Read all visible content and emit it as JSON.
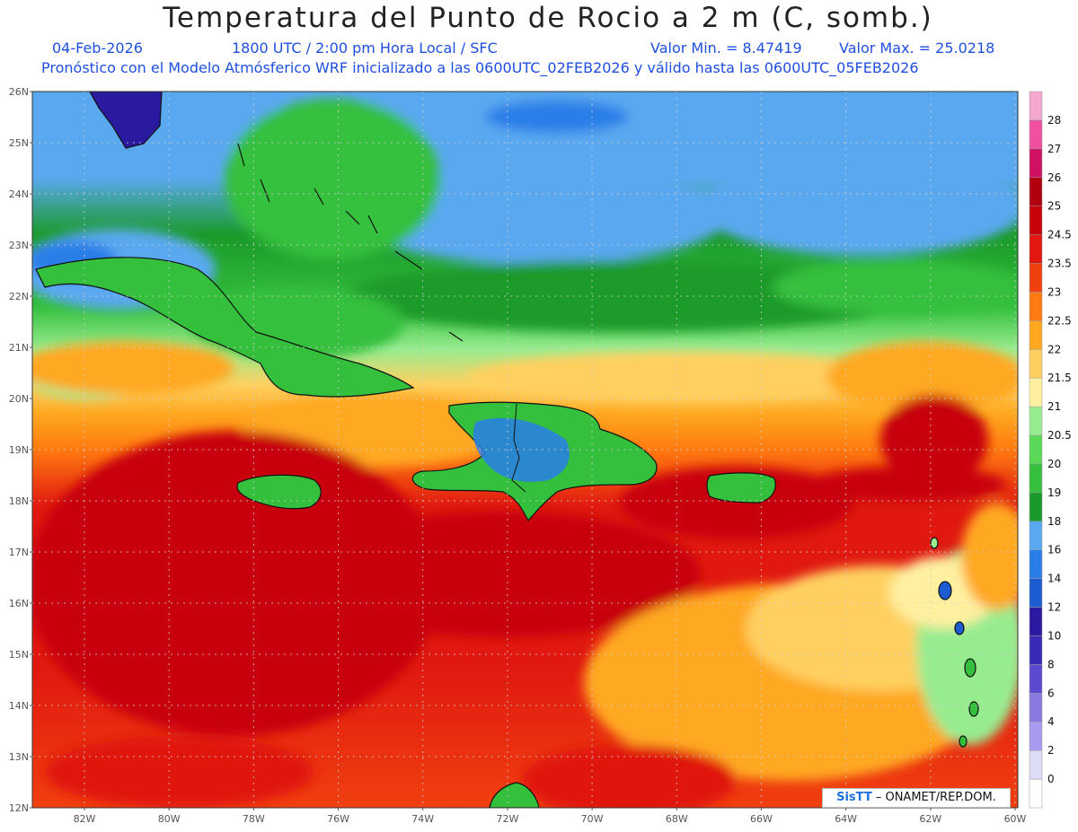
{
  "header": {
    "title": "Temperatura del Punto de Rocio a 2 m (C, somb.)",
    "date": "04-Feb-2026",
    "time": "1800 UTC / 2:00 pm Hora Local / SFC",
    "valmin": "Valor Min. = 8.47419",
    "valmax": "Valor Max. = 25.0218",
    "model": "Pronóstico con el Modelo Atmósferico WRF inicializado a las 0600UTC_02FEB2026 y válido hasta las  0600UTC_05FEB2026"
  },
  "axes": {
    "lat_labels": [
      "26N",
      "25N",
      "24N",
      "23N",
      "22N",
      "21N",
      "20N",
      "19N",
      "18N",
      "17N",
      "16N",
      "15N",
      "14N",
      "13N",
      "12N"
    ],
    "lon_labels": [
      "82W",
      "80W",
      "78W",
      "76W",
      "74W",
      "72W",
      "70W",
      "68W",
      "66W",
      "64W",
      "62W",
      "60W"
    ]
  },
  "colorbar": {
    "levels": [
      "0",
      "2",
      "4",
      "6",
      "8",
      "10",
      "12",
      "14",
      "16",
      "18",
      "19",
      "20",
      "20.5",
      "21",
      "21.5",
      "22",
      "22.5",
      "23",
      "23.5",
      "24.5",
      "25",
      "26",
      "27",
      "28"
    ],
    "colors": [
      "#ffffff",
      "#dcdcf6",
      "#a89cf0",
      "#8a7ae0",
      "#5a4ad0",
      "#3a2ab8",
      "#2a1aa0",
      "#1c5cd0",
      "#2a7ee8",
      "#5aa8f0",
      "#1a9a2a",
      "#34c03c",
      "#5ad858",
      "#98ec90",
      "#fff0a0",
      "#ffd060",
      "#ffa820",
      "#ff7a10",
      "#f04010",
      "#e01810",
      "#c80008",
      "#b00010",
      "#d01060",
      "#f050a0",
      "#f4a8d0"
    ]
  },
  "regions": {
    "land": [
      "Florida",
      "Cuba",
      "Jamaica",
      "Hispaniola",
      "Puerto Rico",
      "Bahamas",
      "Lesser Antilles",
      "Sudamérica"
    ]
  },
  "credit": {
    "brand": "SisTT",
    "text": "– ONAMET/REP.DOM."
  }
}
